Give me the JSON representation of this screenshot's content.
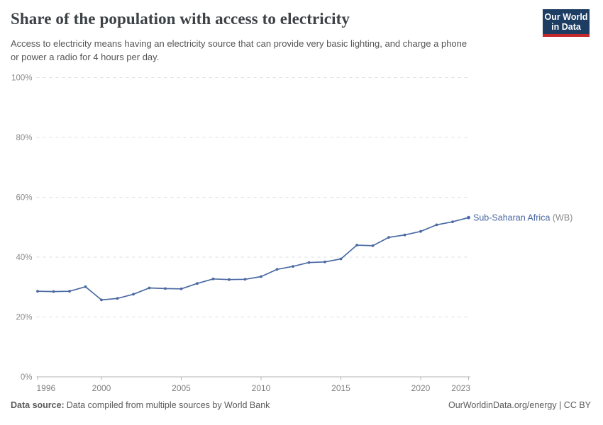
{
  "header": {
    "title": "Share of the population with access to electricity",
    "subtitle_lines": [
      "Access to electricity means having an electricity source that can provide very basic lighting, and charge a phone",
      "or power a radio for 4 hours per day."
    ],
    "logo": {
      "line1": "Our World",
      "line2": "in Data",
      "bg_color": "#1d3d63",
      "stripe_color": "#c5282a"
    }
  },
  "chart_data": {
    "type": "line",
    "title": "Share of the population with access to electricity",
    "xlabel": "",
    "ylabel": "",
    "unit": "%",
    "xlim": [
      1996,
      2023
    ],
    "ylim": [
      0,
      100
    ],
    "grid": "horizontal-dashed",
    "legend_position": "right-of-line-end",
    "x": [
      1996,
      1997,
      1998,
      1999,
      2000,
      2001,
      2002,
      2003,
      2004,
      2005,
      2006,
      2007,
      2008,
      2009,
      2010,
      2011,
      2012,
      2013,
      2014,
      2015,
      2016,
      2017,
      2018,
      2019,
      2020,
      2021,
      2022,
      2023
    ],
    "series": [
      {
        "name": "Sub-Saharan Africa (WB)",
        "label": "Sub-Saharan Africa",
        "label_suffix": " (WB)",
        "color": "#4a69a2",
        "values": [
          28.6,
          28.5,
          28.6,
          30.1,
          25.7,
          26.2,
          27.6,
          29.7,
          29.5,
          29.4,
          31.2,
          32.7,
          32.5,
          32.6,
          33.5,
          35.9,
          36.9,
          38.2,
          38.4,
          39.4,
          44.0,
          43.8,
          46.6,
          47.4,
          48.6,
          50.8,
          51.8,
          53.2
        ]
      }
    ],
    "yticks": [
      {
        "value": 0,
        "label": "0%"
      },
      {
        "value": 20,
        "label": "20%"
      },
      {
        "value": 40,
        "label": "40%"
      },
      {
        "value": 60,
        "label": "60%"
      },
      {
        "value": 80,
        "label": "80%"
      },
      {
        "value": 100,
        "label": "100%"
      }
    ],
    "xticks": [
      {
        "value": 1996,
        "label": "1996"
      },
      {
        "value": 2000,
        "label": "2000"
      },
      {
        "value": 2005,
        "label": "2005"
      },
      {
        "value": 2010,
        "label": "2010"
      },
      {
        "value": 2015,
        "label": "2015"
      },
      {
        "value": 2020,
        "label": "2020"
      },
      {
        "value": 2023,
        "label": "2023"
      }
    ]
  },
  "footer": {
    "source_label": "Data source:",
    "source_text": "Data compiled from multiple sources by World Bank",
    "right_text": "OurWorldinData.org/energy | CC BY"
  }
}
